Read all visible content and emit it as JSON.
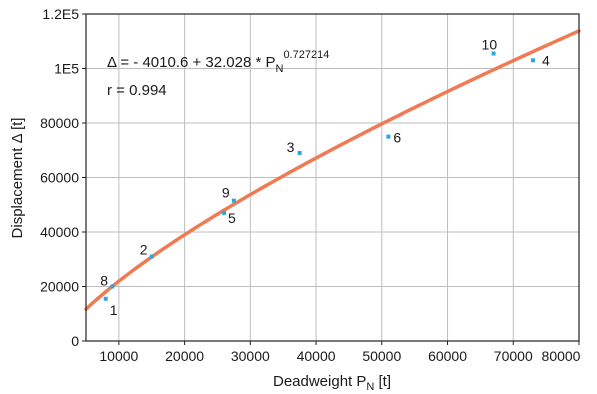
{
  "chart_data": {
    "type": "scatter",
    "title": "",
    "xlabel_main": "Deadweight P",
    "xlabel_sub": "N",
    "xlabel_unit": " [t]",
    "ylabel": "Displacement Δ [t]",
    "xlim": [
      5000,
      80000
    ],
    "ylim": [
      0,
      120000
    ],
    "xticks": [
      10000,
      20000,
      30000,
      40000,
      50000,
      60000,
      70000,
      80000
    ],
    "xtick_labels": [
      "10000",
      "20000",
      "30000",
      "40000",
      "50000",
      "60000",
      "70000",
      "80000"
    ],
    "yticks": [
      0,
      20000,
      40000,
      60000,
      80000,
      100000,
      120000
    ],
    "ytick_labels": [
      "0",
      "20000",
      "40000",
      "60000",
      "80000",
      "1E5",
      "1.2E5"
    ],
    "grid": true,
    "annotation": {
      "eq_main": "Δ = - 4010.6 + 32.028 * P",
      "eq_sub": "N",
      "eq_sup": "0.727214",
      "r_text": "r = 0.994"
    },
    "fit": {
      "intercept": -4010.6,
      "coefficient": 32.028,
      "exponent": 0.727214,
      "color": "#f07a52"
    },
    "point_color": "#29a8e0",
    "points": [
      {
        "label": "1",
        "x": 8000,
        "y": 15500
      },
      {
        "label": "2",
        "x": 15000,
        "y": 31000
      },
      {
        "label": "3",
        "x": 37500,
        "y": 69000
      },
      {
        "label": "4",
        "x": 73000,
        "y": 103000
      },
      {
        "label": "5",
        "x": 26000,
        "y": 47000
      },
      {
        "label": "6",
        "x": 51000,
        "y": 75000
      },
      {
        "label": "8",
        "x": 9000,
        "y": 20000
      },
      {
        "label": "9",
        "x": 27500,
        "y": 51500
      },
      {
        "label": "10",
        "x": 67000,
        "y": 105500
      }
    ]
  }
}
